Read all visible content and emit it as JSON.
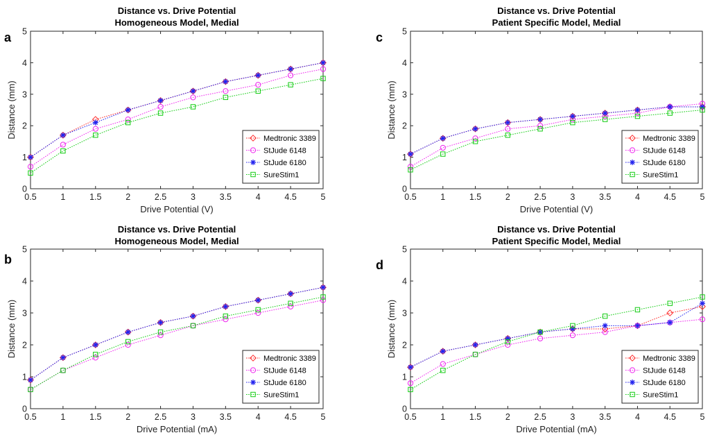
{
  "colors": {
    "Medtronic 3389": "#ff2a2a",
    "StJude 6148": "#ee22ee",
    "StJude 6180": "#2222ee",
    "SureStim1": "#11cc11"
  },
  "chart_data": [
    {
      "type": "line",
      "panel": "a",
      "title": [
        "Distance vs. Drive Potential",
        "Homogeneous Model, Medial"
      ],
      "xlabel": "Drive Potential (V)",
      "ylabel": "Distance (mm)",
      "xlim": [
        0.5,
        5
      ],
      "ylim": [
        0,
        5
      ],
      "xticks": [
        "0.5",
        "1",
        "1.5",
        "2",
        "2.5",
        "3",
        "3.5",
        "4",
        "4.5",
        "5"
      ],
      "yticks": [
        "0",
        "1",
        "2",
        "3",
        "4",
        "5"
      ],
      "legend": "bottom-right",
      "x": [
        0.5,
        1,
        1.5,
        2,
        2.5,
        3,
        3.5,
        4,
        4.5,
        5
      ],
      "series": [
        {
          "name": "Medtronic 3389",
          "marker": "diamond",
          "values": [
            1.0,
            1.7,
            2.2,
            2.5,
            2.8,
            3.1,
            3.4,
            3.6,
            3.8,
            4.0
          ]
        },
        {
          "name": "StJude 6148",
          "marker": "circle",
          "values": [
            0.7,
            1.4,
            1.9,
            2.2,
            2.6,
            2.9,
            3.1,
            3.3,
            3.6,
            3.8
          ]
        },
        {
          "name": "StJude 6180",
          "marker": "star",
          "values": [
            1.0,
            1.7,
            2.1,
            2.5,
            2.8,
            3.1,
            3.4,
            3.6,
            3.8,
            4.0
          ]
        },
        {
          "name": "SureStim1",
          "marker": "square",
          "values": [
            0.5,
            1.2,
            1.7,
            2.1,
            2.4,
            2.6,
            2.9,
            3.1,
            3.3,
            3.5
          ]
        }
      ]
    },
    {
      "type": "line",
      "panel": "c",
      "title": [
        "Distance vs. Drive Potential",
        "Patient Specific Model, Medial"
      ],
      "xlabel": "Drive Potential (V)",
      "ylabel": "Distance (mm)",
      "xlim": [
        0.5,
        5
      ],
      "ylim": [
        0,
        5
      ],
      "xticks": [
        "0.5",
        "1",
        "1.5",
        "2",
        "2.5",
        "3",
        "3.5",
        "4",
        "4.5",
        "5"
      ],
      "yticks": [
        "0",
        "1",
        "2",
        "3",
        "4",
        "5"
      ],
      "legend": "bottom-right",
      "x": [
        0.5,
        1,
        1.5,
        2,
        2.5,
        3,
        3.5,
        4,
        4.5,
        5
      ],
      "series": [
        {
          "name": "Medtronic 3389",
          "marker": "diamond",
          "values": [
            1.1,
            1.6,
            1.9,
            2.1,
            2.2,
            2.3,
            2.4,
            2.5,
            2.6,
            2.6
          ]
        },
        {
          "name": "StJude 6148",
          "marker": "circle",
          "values": [
            0.7,
            1.3,
            1.6,
            1.9,
            2.0,
            2.2,
            2.3,
            2.4,
            2.6,
            2.7
          ]
        },
        {
          "name": "StJude 6180",
          "marker": "star",
          "values": [
            1.1,
            1.6,
            1.9,
            2.1,
            2.2,
            2.3,
            2.4,
            2.5,
            2.6,
            2.6
          ]
        },
        {
          "name": "SureStim1",
          "marker": "square",
          "values": [
            0.6,
            1.1,
            1.5,
            1.7,
            1.9,
            2.1,
            2.2,
            2.3,
            2.4,
            2.5
          ]
        }
      ]
    },
    {
      "type": "line",
      "panel": "b",
      "title": [
        "Distance vs. Drive Potential",
        "Homogeneous Model, Medial"
      ],
      "xlabel": "Drive Potential (mA)",
      "ylabel": "Distance (mm)",
      "xlim": [
        0.5,
        5
      ],
      "ylim": [
        0,
        5
      ],
      "xticks": [
        "0.5",
        "1",
        "1.5",
        "2",
        "2.5",
        "3",
        "3.5",
        "4",
        "4.5",
        "5"
      ],
      "yticks": [
        "0",
        "1",
        "2",
        "3",
        "4",
        "5"
      ],
      "legend": "bottom-right",
      "x": [
        0.5,
        1,
        1.5,
        2,
        2.5,
        3,
        3.5,
        4,
        4.5,
        5
      ],
      "series": [
        {
          "name": "Medtronic 3389",
          "marker": "diamond",
          "values": [
            0.9,
            1.6,
            2.0,
            2.4,
            2.7,
            2.9,
            3.2,
            3.4,
            3.6,
            3.8
          ]
        },
        {
          "name": "StJude 6148",
          "marker": "circle",
          "values": [
            0.6,
            1.2,
            1.6,
            2.0,
            2.3,
            2.6,
            2.8,
            3.0,
            3.2,
            3.4
          ]
        },
        {
          "name": "StJude 6180",
          "marker": "star",
          "values": [
            0.9,
            1.6,
            2.0,
            2.4,
            2.7,
            2.9,
            3.2,
            3.4,
            3.6,
            3.8
          ]
        },
        {
          "name": "SureStim1",
          "marker": "square",
          "values": [
            0.6,
            1.2,
            1.7,
            2.1,
            2.4,
            2.6,
            2.9,
            3.1,
            3.3,
            3.5
          ]
        }
      ]
    },
    {
      "type": "line",
      "panel": "d",
      "title": [
        "Distance vs. Drive Potential",
        "Patient Specific Model, Medial"
      ],
      "xlabel": "Drive Potential (mA)",
      "ylabel": "Distance (mm)",
      "xlim": [
        0.5,
        5
      ],
      "ylim": [
        0,
        5
      ],
      "xticks": [
        "0.5",
        "1",
        "1.5",
        "2",
        "2.5",
        "3",
        "3.5",
        "4",
        "4.5",
        "5"
      ],
      "yticks": [
        "0",
        "1",
        "2",
        "3",
        "4",
        "5"
      ],
      "legend": "bottom-right",
      "x": [
        0.5,
        1,
        1.5,
        2,
        2.5,
        3,
        3.5,
        4,
        4.5,
        5
      ],
      "series": [
        {
          "name": "Medtronic 3389",
          "marker": "diamond",
          "values": [
            1.3,
            1.8,
            2.0,
            2.2,
            2.4,
            2.5,
            2.5,
            2.6,
            3.0,
            3.2
          ]
        },
        {
          "name": "StJude 6148",
          "marker": "circle",
          "values": [
            0.8,
            1.4,
            1.7,
            2.0,
            2.2,
            2.3,
            2.4,
            2.6,
            2.7,
            2.8
          ]
        },
        {
          "name": "StJude 6180",
          "marker": "star",
          "values": [
            1.3,
            1.8,
            2.0,
            2.2,
            2.4,
            2.5,
            2.6,
            2.6,
            2.7,
            3.3
          ]
        },
        {
          "name": "SureStim1",
          "marker": "square",
          "values": [
            0.6,
            1.2,
            1.7,
            2.1,
            2.4,
            2.6,
            2.9,
            3.1,
            3.3,
            3.5
          ]
        }
      ]
    }
  ]
}
